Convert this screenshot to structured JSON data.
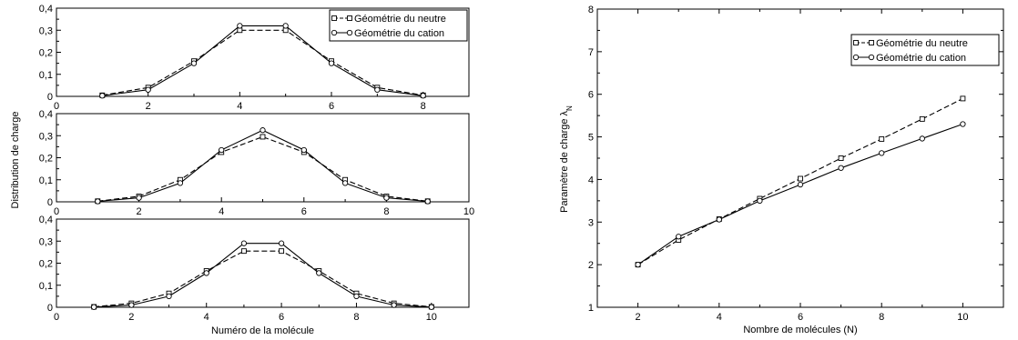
{
  "chart_data": [
    {
      "type": "line",
      "title": "",
      "xlabel": "",
      "ylabel": "",
      "xlim": [
        0,
        9
      ],
      "ylim": [
        0,
        0.4
      ],
      "xticks": [
        "0",
        "2",
        "4",
        "6",
        "8"
      ],
      "yticks": [
        "0",
        "0,1",
        "0,2",
        "0,3",
        "0,4"
      ],
      "legend": "top-right",
      "series": [
        {
          "name": "Géométrie du neutre",
          "style": "dashed",
          "marker": "square",
          "x": [
            1,
            2,
            3,
            4,
            5,
            6,
            7,
            8
          ],
          "y": [
            0.005,
            0.04,
            0.16,
            0.3,
            0.3,
            0.16,
            0.04,
            0.005
          ]
        },
        {
          "name": "Géométrie du cation",
          "style": "solid",
          "marker": "circle",
          "x": [
            1,
            2,
            3,
            4,
            5,
            6,
            7,
            8
          ],
          "y": [
            0.003,
            0.03,
            0.15,
            0.32,
            0.32,
            0.15,
            0.03,
            0.003
          ]
        }
      ]
    },
    {
      "type": "line",
      "title": "",
      "xlabel": "",
      "ylabel": "Distribution de charge",
      "xlim": [
        0,
        10
      ],
      "ylim": [
        0,
        0.4
      ],
      "xticks": [
        "0",
        "2",
        "4",
        "6",
        "8",
        "10"
      ],
      "yticks": [
        "0",
        "0,1",
        "0,2",
        "0,3",
        "0,4"
      ],
      "series": [
        {
          "name": "Géométrie du neutre",
          "style": "dashed",
          "marker": "square",
          "x": [
            1,
            2,
            3,
            4,
            5,
            6,
            7,
            8,
            9
          ],
          "y": [
            0.003,
            0.025,
            0.1,
            0.225,
            0.295,
            0.225,
            0.1,
            0.025,
            0.003
          ]
        },
        {
          "name": "Géométrie du cation",
          "style": "solid",
          "marker": "circle",
          "x": [
            1,
            2,
            3,
            4,
            5,
            6,
            7,
            8,
            9
          ],
          "y": [
            0.002,
            0.018,
            0.085,
            0.235,
            0.325,
            0.235,
            0.085,
            0.018,
            0.002
          ]
        }
      ]
    },
    {
      "type": "line",
      "title": "",
      "xlabel": "Numéro de la molécule",
      "ylabel": "",
      "xlim": [
        0,
        11
      ],
      "ylim": [
        0,
        0.4
      ],
      "xticks": [
        "0",
        "2",
        "4",
        "6",
        "8",
        "10"
      ],
      "yticks": [
        "0",
        "0,1",
        "0,2",
        "0,3",
        "0,4"
      ],
      "series": [
        {
          "name": "Géométrie du neutre",
          "style": "dashed",
          "marker": "square",
          "x": [
            1,
            2,
            3,
            4,
            5,
            6,
            7,
            8,
            9,
            10
          ],
          "y": [
            0.002,
            0.018,
            0.063,
            0.165,
            0.255,
            0.255,
            0.165,
            0.063,
            0.018,
            0.002
          ]
        },
        {
          "name": "Géométrie du cation",
          "style": "solid",
          "marker": "circle",
          "x": [
            1,
            2,
            3,
            4,
            5,
            6,
            7,
            8,
            9,
            10
          ],
          "y": [
            0.001,
            0.01,
            0.05,
            0.155,
            0.29,
            0.29,
            0.155,
            0.05,
            0.01,
            0.001
          ]
        }
      ]
    },
    {
      "type": "line",
      "title": "",
      "xlabel": "Nombre de molécules (N)",
      "ylabel": "Paramètre de charge λ",
      "ylabel_sub": "N",
      "xlim": [
        1,
        11
      ],
      "ylim": [
        1,
        8
      ],
      "xticks": [
        "2",
        "4",
        "6",
        "8",
        "10"
      ],
      "yticks": [
        "1",
        "2",
        "3",
        "4",
        "5",
        "6",
        "7",
        "8"
      ],
      "legend": "top-right",
      "series": [
        {
          "name": "Géométrie du neutre",
          "style": "dashed",
          "marker": "square",
          "x": [
            2,
            3,
            4,
            5,
            6,
            7,
            8,
            9,
            10
          ],
          "y": [
            2.0,
            2.58,
            3.07,
            3.55,
            4.02,
            4.5,
            4.95,
            5.42,
            5.9
          ]
        },
        {
          "name": "Géométrie du cation",
          "style": "solid",
          "marker": "circle",
          "x": [
            2,
            3,
            4,
            5,
            6,
            7,
            8,
            9,
            10
          ],
          "y": [
            2.0,
            2.66,
            3.06,
            3.5,
            3.88,
            4.27,
            4.62,
            4.96,
            5.3
          ]
        }
      ]
    }
  ]
}
